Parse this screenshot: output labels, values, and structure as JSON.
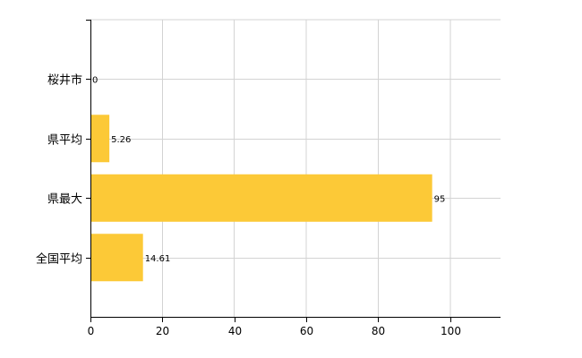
{
  "chart_data": {
    "type": "bar",
    "orientation": "horizontal",
    "categories": [
      "桜井市",
      "県平均",
      "県最大",
      "全国平均"
    ],
    "values": [
      0,
      5.26,
      95,
      14.61
    ],
    "value_labels": [
      "0",
      "5.26",
      "95",
      "14.61"
    ],
    "x_ticks": [
      "0",
      "20",
      "40",
      "60",
      "80",
      "100"
    ],
    "xlim": [
      0,
      114
    ],
    "grid": true,
    "bar_color": "#fcc937"
  }
}
